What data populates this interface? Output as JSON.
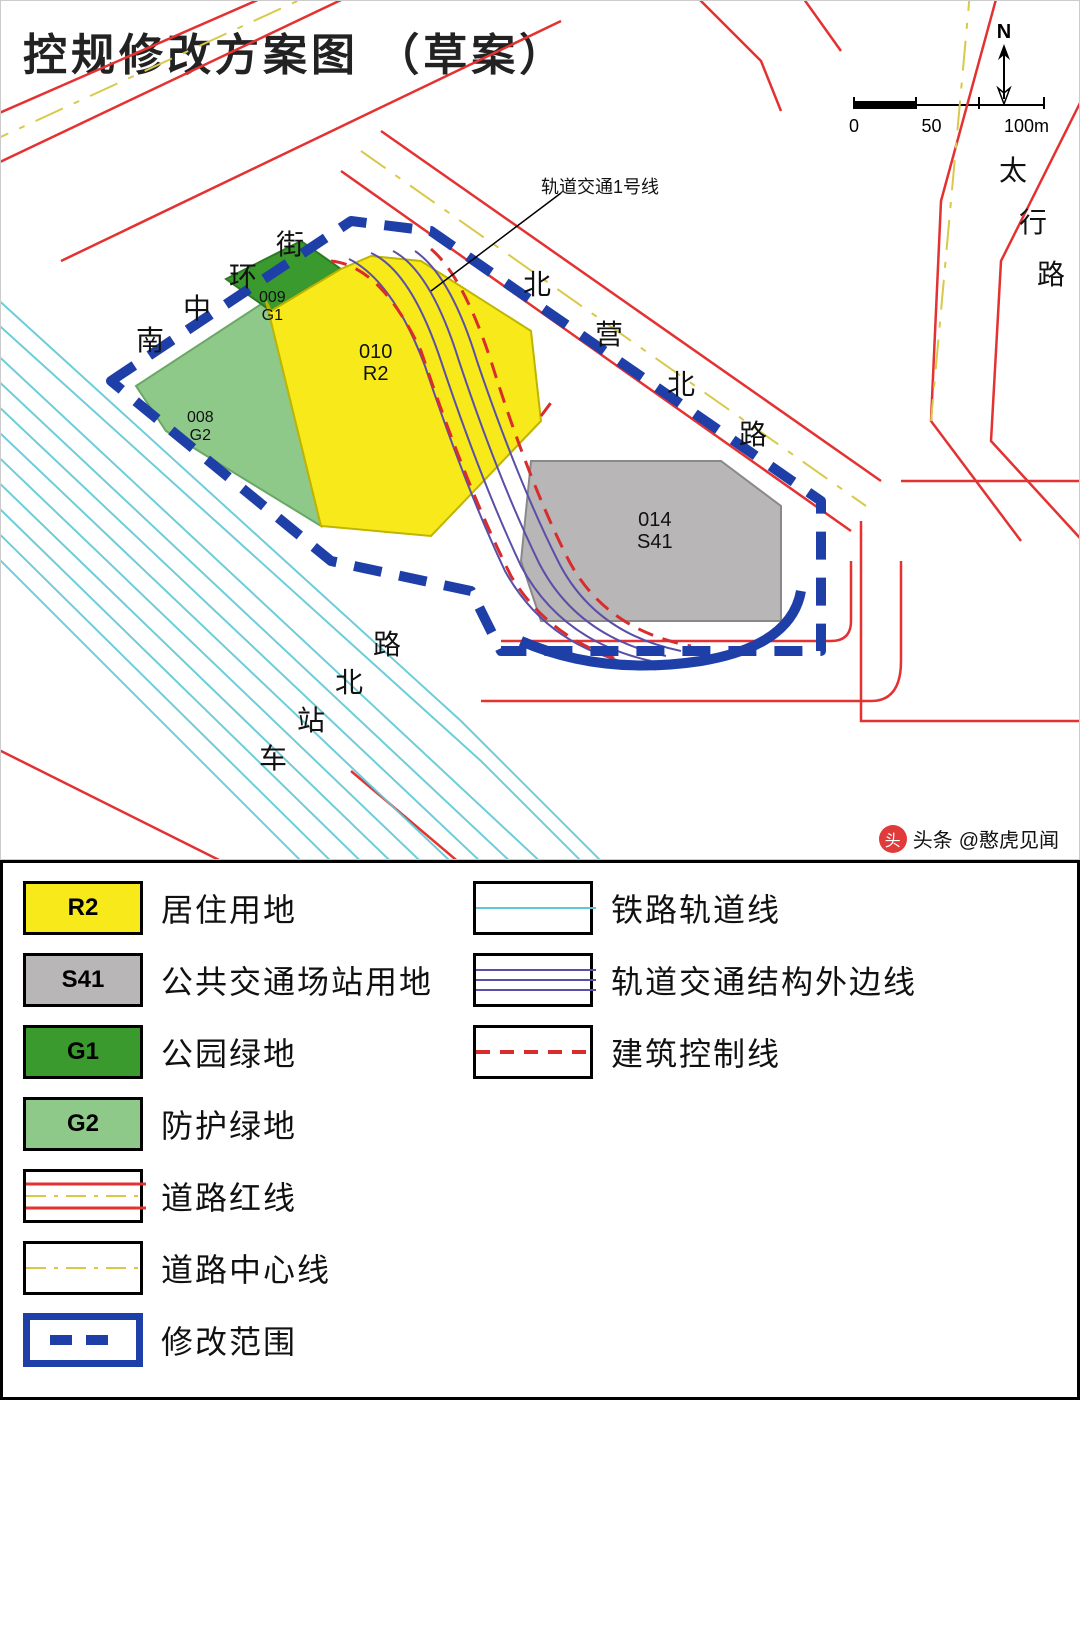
{
  "title": "控规修改方案图 （草案）",
  "compass": {
    "label": "N"
  },
  "scale": {
    "ticks": [
      "0",
      "50",
      "100m"
    ]
  },
  "attribution": {
    "prefix": "头条",
    "handle": "@憨虎见闻"
  },
  "callout": "轨道交通1号线",
  "roads": {
    "nanzhong_huanjie": [
      "南",
      "中",
      "环",
      "街"
    ],
    "beiying_beilu": [
      "北",
      "营",
      "北",
      "路"
    ],
    "taihang_lu": [
      "太",
      "行",
      "路"
    ],
    "chezhan_beilu": [
      "车",
      "站",
      "北",
      "路"
    ]
  },
  "parcels": [
    {
      "code": "009",
      "zone": "G1",
      "color": "#3a9a2e"
    },
    {
      "code": "008",
      "zone": "G2",
      "color": "#8fc98a"
    },
    {
      "code": "010",
      "zone": "R2",
      "color": "#f8e91a"
    },
    {
      "code": "014",
      "zone": "S41",
      "color": "#b8b6b6"
    }
  ],
  "colors": {
    "road_line": "#e43131",
    "rail_line": "#5fc8d6",
    "subway_line": "#5a4fa8",
    "control_line": "#d92c2c",
    "boundary": "#1e3fa8",
    "road_center": "#d9c94a"
  },
  "legend": {
    "left": [
      {
        "type": "fill",
        "code": "R2",
        "color": "#f8e91a",
        "label": "居住用地"
      },
      {
        "type": "fill",
        "code": "S41",
        "color": "#b8b6b6",
        "label": "公共交通场站用地"
      },
      {
        "type": "fill",
        "code": "G1",
        "color": "#3a9a2e",
        "label": "公园绿地"
      },
      {
        "type": "fill",
        "code": "G2",
        "color": "#8fc98a",
        "label": "防护绿地"
      },
      {
        "type": "road-red",
        "label": "道路红线"
      },
      {
        "type": "road-center",
        "label": "道路中心线"
      },
      {
        "type": "boundary",
        "label": "修改范围"
      }
    ],
    "right": [
      {
        "type": "rail",
        "label": "铁路轨道线"
      },
      {
        "type": "subway",
        "label": "轨道交通结构外边线"
      },
      {
        "type": "control",
        "label": "建筑控制线"
      }
    ]
  }
}
